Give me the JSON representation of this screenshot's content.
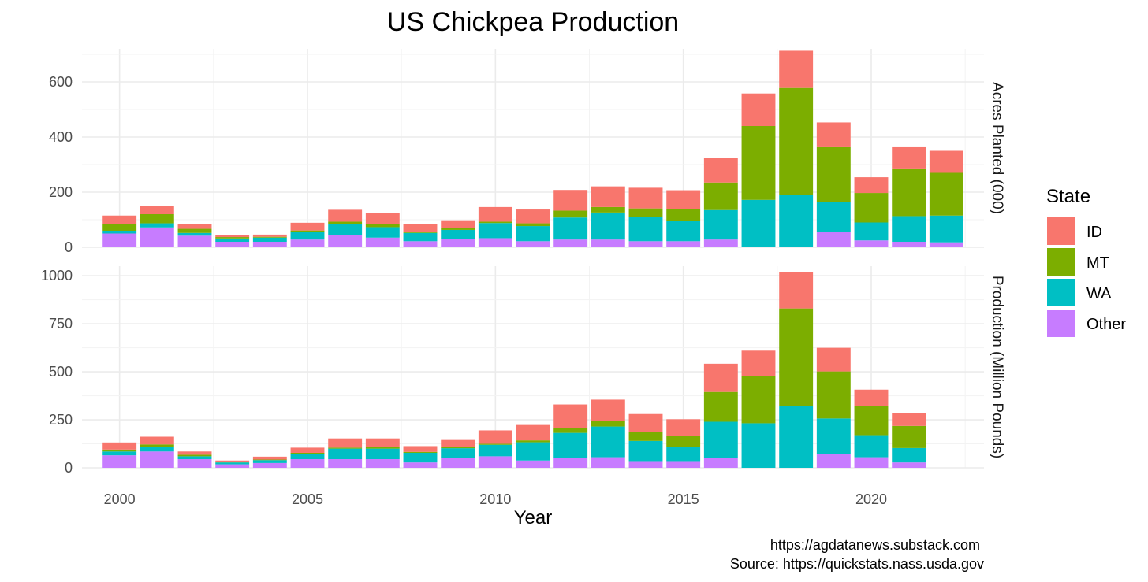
{
  "chart_data": {
    "type": "bar",
    "stacked": true,
    "title": "US Chickpea Production",
    "xlabel": "Year",
    "x": [
      2000,
      2001,
      2002,
      2003,
      2004,
      2005,
      2006,
      2007,
      2008,
      2009,
      2010,
      2011,
      2012,
      2013,
      2014,
      2015,
      2016,
      2017,
      2018,
      2019,
      2020,
      2021,
      2022
    ],
    "x_ticks": [
      2000,
      2005,
      2010,
      2015,
      2020
    ],
    "grid": true,
    "legend": {
      "title": "State",
      "position": "right",
      "entries": [
        "ID",
        "MT",
        "WA",
        "Other"
      ]
    },
    "colors": {
      "ID": "#F8766D",
      "MT": "#7CAE00",
      "WA": "#00BFC4",
      "Other": "#C77CFF"
    },
    "facets": [
      {
        "label": "Acres Planted (000)",
        "ylim": [
          0,
          720
        ],
        "y_ticks": [
          0,
          200,
          400,
          600
        ],
        "series": [
          {
            "name": "Other",
            "values": [
              50,
              72,
              42,
              20,
              20,
              28,
              45,
              35,
              22,
              30,
              33,
              22,
              28,
              28,
              22,
              22,
              28,
              0,
              0,
              55,
              25,
              20,
              18
            ]
          },
          {
            "name": "WA",
            "values": [
              10,
              15,
              10,
              12,
              15,
              28,
              38,
              38,
              30,
              33,
              55,
              55,
              80,
              98,
              87,
              73,
              107,
              172,
              190,
              110,
              65,
              93,
              97
            ]
          },
          {
            "name": "MT",
            "values": [
              25,
              33,
              15,
              5,
              3,
              5,
              10,
              10,
              5,
              8,
              5,
              10,
              25,
              20,
              32,
              45,
              100,
              268,
              388,
              198,
              107,
              173,
              155
            ]
          },
          {
            "name": "ID",
            "values": [
              30,
              30,
              18,
              7,
              8,
              28,
              43,
              42,
              26,
              27,
              53,
              50,
              75,
              75,
              75,
              67,
              90,
              118,
              135,
              90,
              57,
              77,
              80
            ]
          }
        ]
      },
      {
        "label": "Production (Million Pounds)",
        "ylim": [
          0,
          1050
        ],
        "y_ticks": [
          0,
          250,
          500,
          750,
          1000
        ],
        "series": [
          {
            "name": "Other",
            "values": [
              65,
              85,
              45,
              18,
              25,
              45,
              45,
              45,
              28,
              52,
              60,
              38,
              52,
              55,
              35,
              35,
              52,
              0,
              0,
              72,
              55,
              28,
              null
            ]
          },
          {
            "name": "WA",
            "values": [
              20,
              22,
              15,
              10,
              15,
              28,
              55,
              55,
              50,
              50,
              60,
              95,
              130,
              160,
              105,
              75,
              188,
              232,
              320,
              185,
              115,
              75,
              null
            ]
          },
          {
            "name": "MT",
            "values": [
              10,
              15,
              8,
              2,
              3,
              5,
              5,
              8,
              5,
              5,
              5,
              10,
              25,
              30,
              45,
              55,
              155,
              247,
              510,
              245,
              150,
              115,
              null
            ]
          },
          {
            "name": "ID",
            "values": [
              37,
              40,
              17,
              8,
              15,
              27,
              48,
              45,
              30,
              38,
              70,
              80,
              123,
              110,
              95,
              88,
              147,
              131,
              190,
              123,
              87,
              67,
              null
            ]
          }
        ]
      }
    ]
  },
  "caption": {
    "line1": "https://agdatanews.substack.com",
    "line2": "Source: https://quickstats.nass.usda.gov"
  }
}
